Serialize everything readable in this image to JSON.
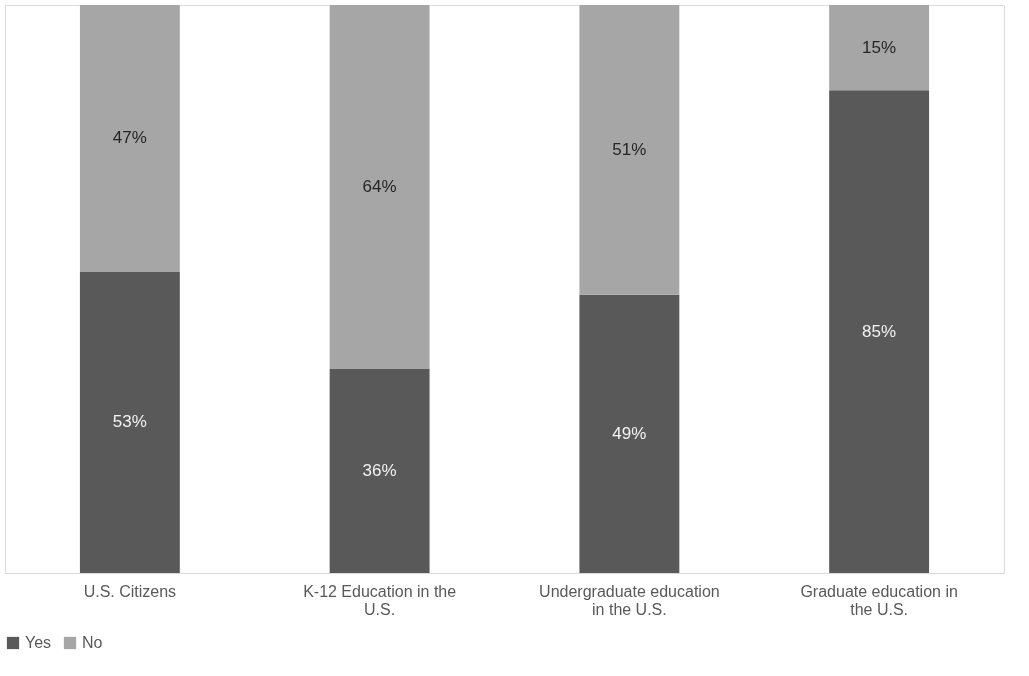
{
  "chart_data": {
    "type": "bar",
    "stacked": true,
    "categories": [
      "U.S. Citizens",
      "K-12 Education in the U.S.",
      "Undergraduate education in the U.S.",
      "Graduate education in the U.S."
    ],
    "series": [
      {
        "name": "Yes",
        "color": "#595959",
        "values": [
          53,
          36,
          49,
          85
        ],
        "value_labels": [
          "53%",
          "36%",
          "49%",
          "85%"
        ]
      },
      {
        "name": "No",
        "color": "#a6a6a6",
        "values": [
          47,
          64,
          51,
          15
        ],
        "value_labels": [
          "47%",
          "64%",
          "51%",
          "15%"
        ]
      }
    ],
    "legend": "bottom"
  }
}
